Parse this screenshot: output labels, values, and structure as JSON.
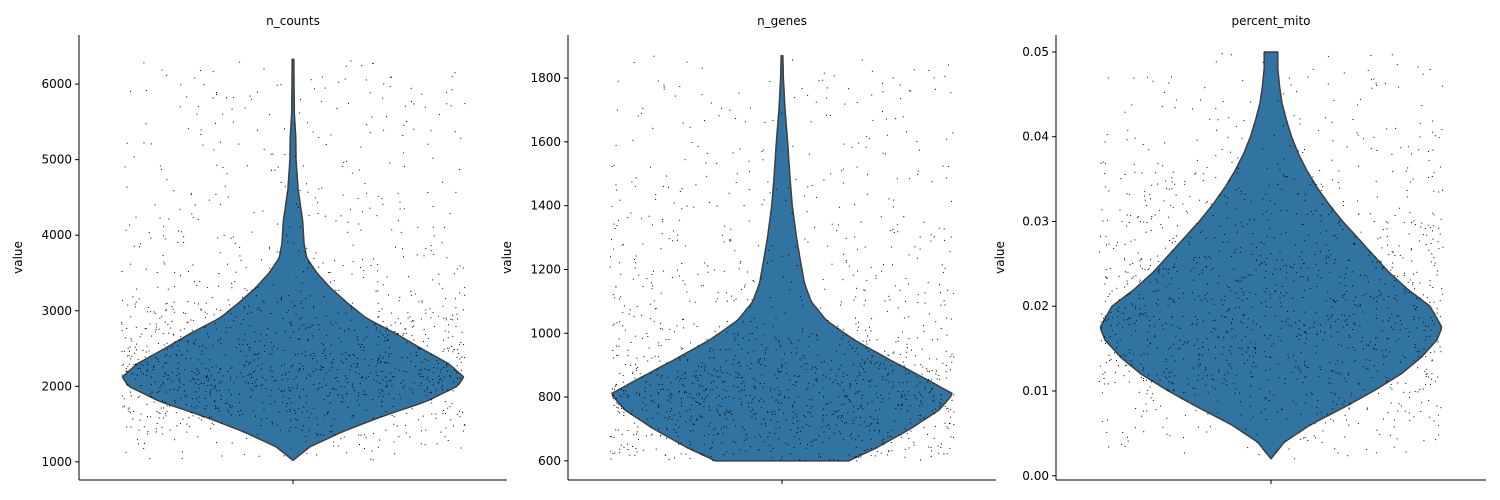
{
  "chart_data": [
    {
      "type": "violin",
      "title": "n_counts",
      "ylabel": "value",
      "ylim": [
        760,
        6650
      ],
      "yticks": [
        1000,
        2000,
        3000,
        4000,
        5000,
        6000
      ],
      "ytick_labels": [
        "1000",
        "2000",
        "3000",
        "4000",
        "5000",
        "6000"
      ],
      "color": "#3274a1",
      "stripplot": true,
      "min": 1020,
      "max": 6330,
      "mode": 2120,
      "density_profile": [
        [
          1020,
          0.0
        ],
        [
          1200,
          0.1
        ],
        [
          1400,
          0.29
        ],
        [
          1600,
          0.52
        ],
        [
          1800,
          0.78
        ],
        [
          2000,
          0.96
        ],
        [
          2120,
          1.0
        ],
        [
          2300,
          0.91
        ],
        [
          2500,
          0.75
        ],
        [
          2700,
          0.6
        ],
        [
          2900,
          0.43
        ],
        [
          3100,
          0.32
        ],
        [
          3300,
          0.22
        ],
        [
          3500,
          0.14
        ],
        [
          3700,
          0.08
        ],
        [
          3900,
          0.064
        ],
        [
          4200,
          0.056
        ],
        [
          4600,
          0.03
        ],
        [
          5000,
          0.018
        ],
        [
          5300,
          0.016
        ],
        [
          5600,
          0.008
        ],
        [
          6000,
          0.006
        ],
        [
          6330,
          0.005
        ]
      ]
    },
    {
      "type": "violin",
      "title": "n_genes",
      "ylabel": "value",
      "ylim": [
        540,
        1935
      ],
      "yticks": [
        600,
        800,
        1000,
        1200,
        1400,
        1600,
        1800
      ],
      "ytick_labels": [
        "600",
        "800",
        "1000",
        "1200",
        "1400",
        "1600",
        "1800"
      ],
      "color": "#3274a1",
      "stripplot": true,
      "min": 600,
      "max": 1870,
      "mode": 810,
      "density_profile": [
        [
          600,
          0.39
        ],
        [
          640,
          0.55
        ],
        [
          700,
          0.75
        ],
        [
          760,
          0.92
        ],
        [
          810,
          1.0
        ],
        [
          860,
          0.83
        ],
        [
          920,
          0.62
        ],
        [
          980,
          0.42
        ],
        [
          1040,
          0.26
        ],
        [
          1100,
          0.17
        ],
        [
          1160,
          0.13
        ],
        [
          1220,
          0.11
        ],
        [
          1300,
          0.085
        ],
        [
          1400,
          0.06
        ],
        [
          1500,
          0.045
        ],
        [
          1600,
          0.033
        ],
        [
          1700,
          0.018
        ],
        [
          1800,
          0.008
        ],
        [
          1870,
          0.005
        ]
      ]
    },
    {
      "type": "violin",
      "title": "percent_mito",
      "ylabel": "value",
      "ylim": [
        -0.0005,
        0.052
      ],
      "yticks": [
        0.0,
        0.01,
        0.02,
        0.03,
        0.04,
        0.05
      ],
      "ytick_labels": [
        "0.00",
        "0.01",
        "0.02",
        "0.03",
        "0.04",
        "0.05"
      ],
      "color": "#3274a1",
      "stripplot": true,
      "min": 0.002,
      "max": 0.05,
      "mode": 0.0175,
      "density_profile": [
        [
          0.002,
          0.0
        ],
        [
          0.004,
          0.08
        ],
        [
          0.006,
          0.23
        ],
        [
          0.008,
          0.42
        ],
        [
          0.01,
          0.6
        ],
        [
          0.012,
          0.76
        ],
        [
          0.014,
          0.88
        ],
        [
          0.016,
          0.97
        ],
        [
          0.0175,
          1.0
        ],
        [
          0.02,
          0.93
        ],
        [
          0.022,
          0.8
        ],
        [
          0.024,
          0.69
        ],
        [
          0.026,
          0.6
        ],
        [
          0.028,
          0.51
        ],
        [
          0.03,
          0.42
        ],
        [
          0.032,
          0.34
        ],
        [
          0.034,
          0.27
        ],
        [
          0.036,
          0.21
        ],
        [
          0.038,
          0.16
        ],
        [
          0.04,
          0.12
        ],
        [
          0.042,
          0.09
        ],
        [
          0.044,
          0.064
        ],
        [
          0.046,
          0.05
        ],
        [
          0.048,
          0.04
        ],
        [
          0.05,
          0.04
        ]
      ]
    }
  ]
}
